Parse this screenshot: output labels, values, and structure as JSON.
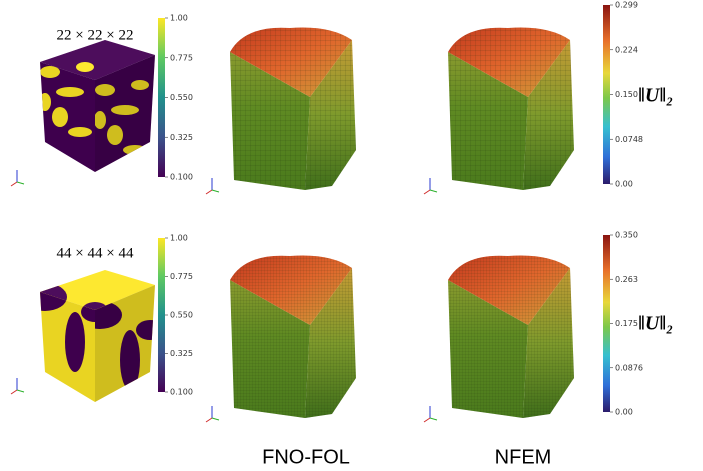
{
  "rows": [
    {
      "label": "22 × 22 × 22",
      "input_colorbar": {
        "ticks": [
          "1.00",
          "0.775",
          "0.550",
          "0.325",
          "0.100"
        ]
      },
      "output_colorbar": {
        "label": "‖U‖₂",
        "ticks": [
          "0.299",
          "0.224",
          "0.150",
          "0.0748",
          "0.00"
        ]
      }
    },
    {
      "label": "44 × 44 × 44",
      "input_colorbar": {
        "ticks": [
          "1.00",
          "0.775",
          "0.550",
          "0.325",
          "0.100"
        ]
      },
      "output_colorbar": {
        "label": "‖U‖₂",
        "ticks": [
          "0.350",
          "0.263",
          "0.175",
          "0.0876",
          "0.00"
        ]
      }
    }
  ],
  "columns": [
    "FNO-FOL",
    "NFEM"
  ]
}
